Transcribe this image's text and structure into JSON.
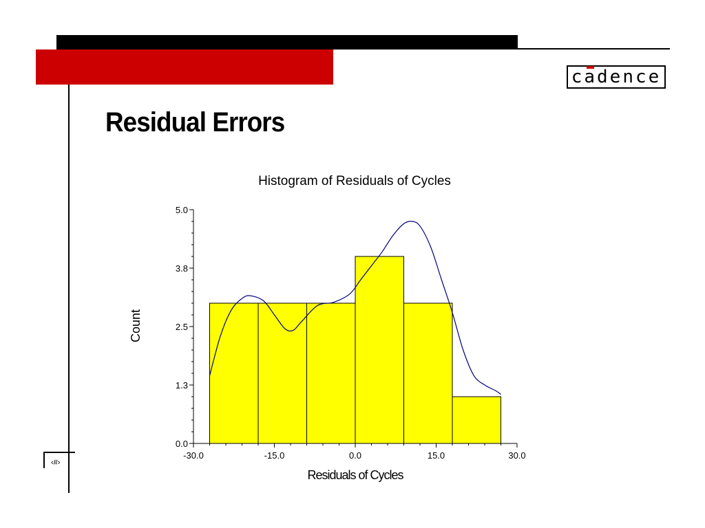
{
  "slide": {
    "title": "Residual Errors",
    "logo_text": "cadence",
    "page_number": "‹#›"
  },
  "colors": {
    "accent_red": "#cc0000",
    "bar_fill": "#ffff00",
    "curve": "#000080"
  },
  "chart_data": {
    "type": "bar",
    "subtype": "histogram",
    "title": "Histogram of Residuals of Cycles",
    "xlabel": "Residuals of Cycles",
    "ylabel": "Count",
    "xlim": [
      -30.0,
      30.0
    ],
    "ylim": [
      0.0,
      5.0
    ],
    "xticks": [
      "-30.0",
      "-15.0",
      "0.0",
      "15.0",
      "30.0"
    ],
    "yticks": [
      "0.0",
      "1.3",
      "2.5",
      "3.8",
      "5.0"
    ],
    "bins": [
      {
        "from": -27.0,
        "to": -18.0,
        "count": 3
      },
      {
        "from": -18.0,
        "to": -9.0,
        "count": 3
      },
      {
        "from": -9.0,
        "to": 0.0,
        "count": 3
      },
      {
        "from": 0.0,
        "to": 9.0,
        "count": 4
      },
      {
        "from": 9.0,
        "to": 18.0,
        "count": 3
      },
      {
        "from": 18.0,
        "to": 27.0,
        "count": 1
      }
    ],
    "density_curve": [
      [
        -27.0,
        1.45
      ],
      [
        -25.0,
        2.3
      ],
      [
        -23.0,
        2.85
      ],
      [
        -21.0,
        3.1
      ],
      [
        -19.5,
        3.16
      ],
      [
        -17.0,
        3.05
      ],
      [
        -15.0,
        2.75
      ],
      [
        -13.0,
        2.45
      ],
      [
        -11.5,
        2.42
      ],
      [
        -10.0,
        2.6
      ],
      [
        -7.0,
        2.95
      ],
      [
        -4.0,
        3.02
      ],
      [
        -1.0,
        3.2
      ],
      [
        1.0,
        3.5
      ],
      [
        3.0,
        3.8
      ],
      [
        5.0,
        4.1
      ],
      [
        7.0,
        4.45
      ],
      [
        9.0,
        4.7
      ],
      [
        10.5,
        4.75
      ],
      [
        12.0,
        4.65
      ],
      [
        14.0,
        4.2
      ],
      [
        16.0,
        3.5
      ],
      [
        18.0,
        2.8
      ],
      [
        20.0,
        2.0
      ],
      [
        22.0,
        1.45
      ],
      [
        24.0,
        1.25
      ],
      [
        26.0,
        1.13
      ],
      [
        27.0,
        1.05
      ]
    ]
  }
}
